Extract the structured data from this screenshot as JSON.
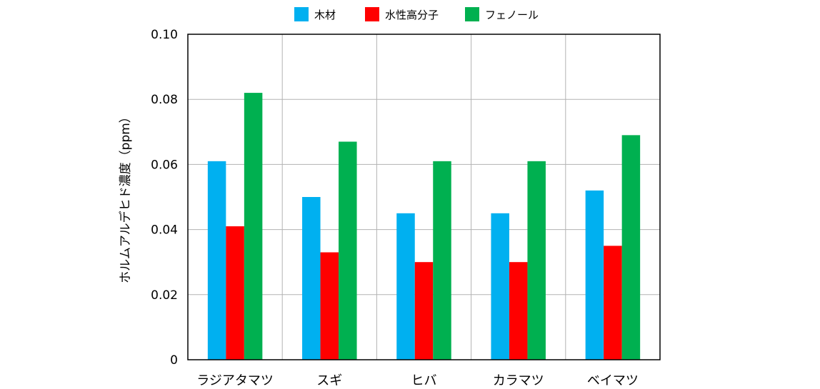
{
  "chart_data": {
    "type": "bar",
    "ylabel": "ホルムアルデヒド濃度（ppm）",
    "ylim": [
      0,
      0.1
    ],
    "yticks": [
      "0",
      "0.02",
      "0.04",
      "0.06",
      "0.08",
      "0.10"
    ],
    "categories": [
      "ラジアタマツ",
      "スギ",
      "ヒバ",
      "カラマツ",
      "ベイマツ"
    ],
    "series": [
      {
        "name": "木材",
        "color": "#00b0f0",
        "values": [
          0.061,
          0.05,
          0.045,
          0.045,
          0.052
        ]
      },
      {
        "name": "水性高分子",
        "color": "#ff0000",
        "values": [
          0.041,
          0.033,
          0.03,
          0.03,
          0.035
        ]
      },
      {
        "name": "フェノール",
        "color": "#00b050",
        "values": [
          0.082,
          0.067,
          0.061,
          0.061,
          0.069
        ]
      }
    ],
    "grid": true,
    "legend_position": "top"
  }
}
